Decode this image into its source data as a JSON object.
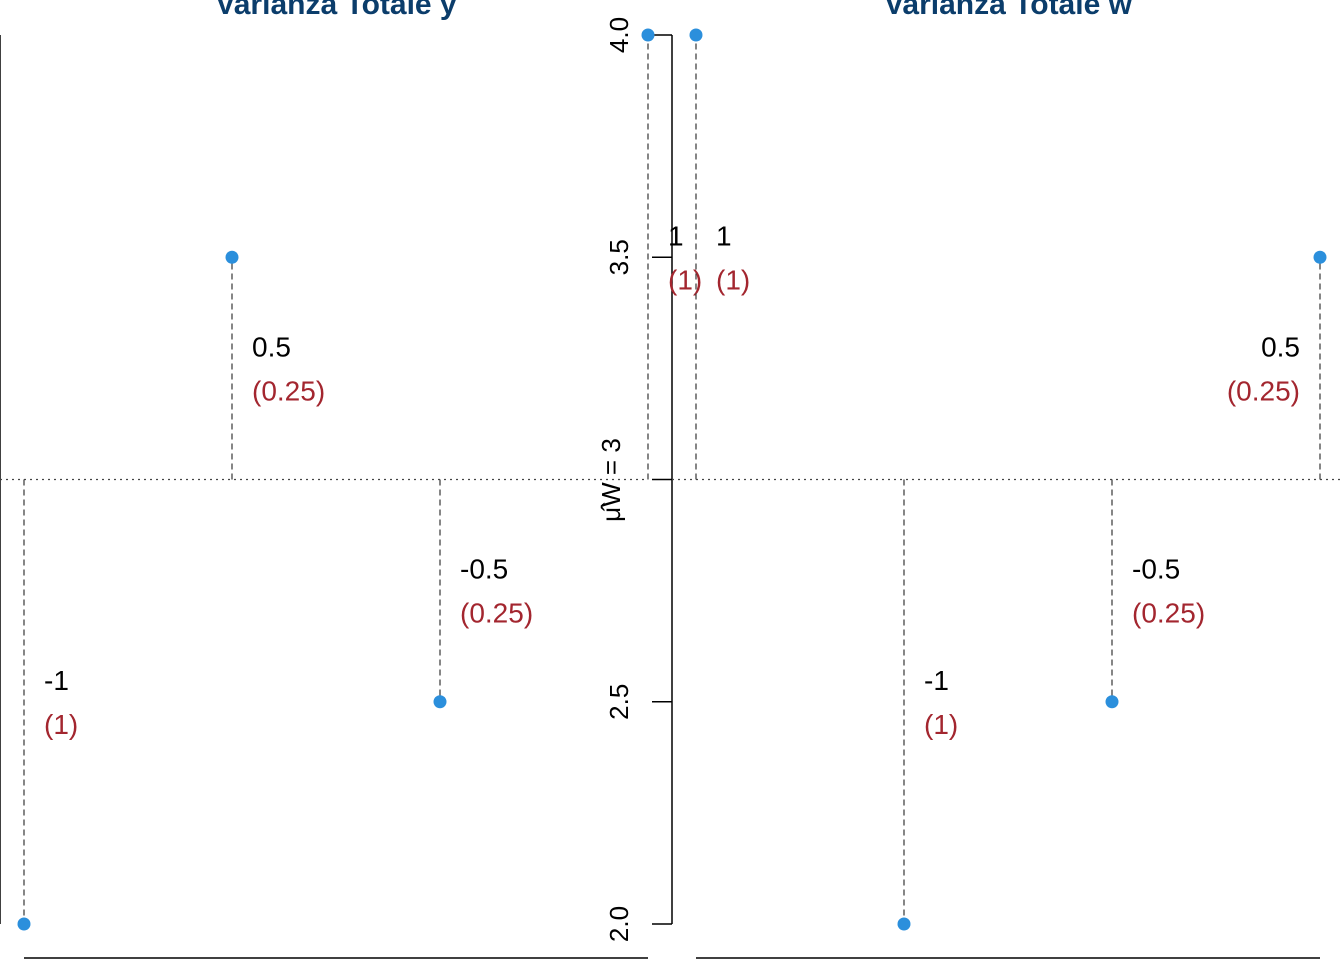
{
  "colors": {
    "title": "#0b3d6b",
    "point": "#2b8fdc",
    "deviation": "#000000",
    "squared": "#a3262f",
    "axis": "#000000",
    "guide": "#444444"
  },
  "chart_data": [
    {
      "type": "scatter",
      "title": "Varianza Totale y",
      "x": [
        1,
        2,
        3,
        4
      ],
      "y": [
        2,
        3.5,
        2.5,
        4
      ],
      "mean": 3,
      "deviations": [
        "-1",
        "0.5",
        "-0.5",
        "1"
      ],
      "squared_deviations": [
        "(1)",
        "(0.25)",
        "(0.25)",
        "(1)"
      ],
      "ylim": [
        2,
        4
      ],
      "grid": false
    },
    {
      "type": "scatter",
      "title": "Varianza Totale w",
      "x": [
        1,
        2,
        3,
        4
      ],
      "y": [
        4,
        2,
        2.5,
        3.5
      ],
      "mean": 3,
      "mean_label": "μ̂W = 3",
      "yticks": [
        "2.0",
        "2.5",
        "3.5",
        "4.0"
      ],
      "deviations": [
        "1",
        "-1",
        "-0.5",
        "0.5"
      ],
      "squared_deviations": [
        "(1)",
        "(1)",
        "(0.25)",
        "(0.25)"
      ],
      "ylim": [
        2,
        4
      ],
      "grid": false
    }
  ]
}
